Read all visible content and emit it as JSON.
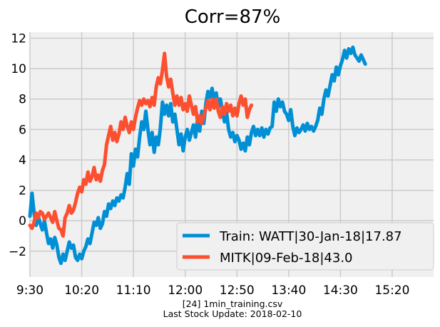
{
  "chart_data": {
    "type": "line",
    "title": "Corr=87%",
    "xlabel": "",
    "ylabel": "",
    "x_tick_labels": [
      "9:30",
      "10:20",
      "11:10",
      "12:00",
      "12:50",
      "13:40",
      "14:30",
      "15:20"
    ],
    "x_range_minutes": [
      0,
      390
    ],
    "ylim": [
      -3.7,
      12.4
    ],
    "y_ticks": [
      -2,
      0,
      2,
      4,
      6,
      8,
      10,
      12
    ],
    "y_tick_labels": [
      "−2",
      "0",
      "2",
      "4",
      "6",
      "8",
      "10",
      "12"
    ],
    "grid": true,
    "legend_position": "lower right",
    "series": [
      {
        "name": "Train: WATT|30-Jan-18|17.87",
        "color": "#008fd5",
        "points": [
          [
            0,
            0.3
          ],
          [
            2,
            1.8
          ],
          [
            4,
            0.5
          ],
          [
            6,
            -0.3
          ],
          [
            8,
            0.3
          ],
          [
            10,
            -0.2
          ],
          [
            12,
            -0.6
          ],
          [
            14,
            0.0
          ],
          [
            16,
            -0.8
          ],
          [
            18,
            -1.5
          ],
          [
            20,
            -1.2
          ],
          [
            22,
            -1.8
          ],
          [
            24,
            -1.1
          ],
          [
            26,
            -1.6
          ],
          [
            28,
            -2.4
          ],
          [
            30,
            -2.8
          ],
          [
            32,
            -2.2
          ],
          [
            34,
            -2.6
          ],
          [
            36,
            -2.0
          ],
          [
            38,
            -1.4
          ],
          [
            40,
            -1.8
          ],
          [
            42,
            -1.6
          ],
          [
            44,
            -2.4
          ],
          [
            46,
            -2.6
          ],
          [
            48,
            -2.2
          ],
          [
            50,
            -2.5
          ],
          [
            52,
            -2.0
          ],
          [
            54,
            -1.7
          ],
          [
            56,
            -1.2
          ],
          [
            58,
            -1.5
          ],
          [
            60,
            -0.8
          ],
          [
            62,
            -0.1
          ],
          [
            64,
            -0.3
          ],
          [
            66,
            0.2
          ],
          [
            68,
            -0.5
          ],
          [
            70,
            -0.2
          ],
          [
            72,
            0.6
          ],
          [
            74,
            0.3
          ],
          [
            76,
            1.1
          ],
          [
            78,
            0.8
          ],
          [
            80,
            1.3
          ],
          [
            82,
            1.0
          ],
          [
            84,
            1.5
          ],
          [
            86,
            1.3
          ],
          [
            88,
            1.7
          ],
          [
            90,
            1.5
          ],
          [
            92,
            2.2
          ],
          [
            94,
            3.1
          ],
          [
            96,
            2.4
          ],
          [
            98,
            4.4
          ],
          [
            100,
            3.6
          ],
          [
            102,
            4.7
          ],
          [
            104,
            4.2
          ],
          [
            106,
            5.5
          ],
          [
            108,
            6.5
          ],
          [
            110,
            6.0
          ],
          [
            112,
            7.2
          ],
          [
            114,
            6.0
          ],
          [
            116,
            5.0
          ],
          [
            118,
            5.8
          ],
          [
            120,
            4.5
          ],
          [
            122,
            5.5
          ],
          [
            124,
            5.0
          ],
          [
            126,
            6.1
          ],
          [
            128,
            7.8
          ],
          [
            130,
            7.0
          ],
          [
            132,
            7.6
          ],
          [
            134,
            6.9
          ],
          [
            136,
            7.7
          ],
          [
            138,
            6.5
          ],
          [
            140,
            7.0
          ],
          [
            142,
            6.0
          ],
          [
            144,
            5.0
          ],
          [
            146,
            5.7
          ],
          [
            148,
            4.6
          ],
          [
            150,
            5.5
          ],
          [
            152,
            6.0
          ],
          [
            154,
            5.3
          ],
          [
            156,
            5.8
          ],
          [
            158,
            6.3
          ],
          [
            160,
            5.5
          ],
          [
            162,
            6.7
          ],
          [
            164,
            5.9
          ],
          [
            166,
            7.2
          ],
          [
            168,
            6.4
          ],
          [
            170,
            7.7
          ],
          [
            172,
            8.5
          ],
          [
            174,
            8.1
          ],
          [
            176,
            8.7
          ],
          [
            178,
            7.8
          ],
          [
            180,
            8.4
          ],
          [
            182,
            7.5
          ],
          [
            184,
            8.0
          ],
          [
            186,
            7.2
          ],
          [
            188,
            6.5
          ],
          [
            190,
            7.1
          ],
          [
            192,
            6.0
          ],
          [
            194,
            5.5
          ],
          [
            196,
            5.8
          ],
          [
            198,
            5.2
          ],
          [
            200,
            5.6
          ],
          [
            202,
            5.3
          ],
          [
            204,
            4.7
          ],
          [
            206,
            5.1
          ],
          [
            208,
            4.6
          ],
          [
            210,
            5.5
          ],
          [
            212,
            5.0
          ],
          [
            214,
            5.8
          ],
          [
            216,
            6.2
          ],
          [
            218,
            5.6
          ],
          [
            220,
            6.0
          ],
          [
            222,
            5.6
          ],
          [
            224,
            6.1
          ],
          [
            226,
            5.5
          ],
          [
            228,
            6.0
          ],
          [
            230,
            5.7
          ],
          [
            232,
            6.1
          ],
          [
            234,
            6.2
          ],
          [
            236,
            7.8
          ],
          [
            238,
            7.2
          ],
          [
            240,
            8.0
          ],
          [
            242,
            7.5
          ],
          [
            244,
            7.8
          ],
          [
            246,
            7.2
          ],
          [
            248,
            7.0
          ],
          [
            250,
            6.6
          ],
          [
            252,
            7.3
          ],
          [
            254,
            6.2
          ],
          [
            256,
            5.6
          ],
          [
            258,
            6.1
          ],
          [
            260,
            5.8
          ],
          [
            262,
            6.0
          ],
          [
            264,
            6.3
          ],
          [
            266,
            5.9
          ],
          [
            268,
            6.4
          ],
          [
            270,
            6.0
          ],
          [
            272,
            6.2
          ],
          [
            274,
            5.9
          ],
          [
            276,
            6.2
          ],
          [
            278,
            6.6
          ],
          [
            280,
            7.4
          ],
          [
            282,
            7.0
          ],
          [
            284,
            8.0
          ],
          [
            286,
            8.6
          ],
          [
            288,
            8.2
          ],
          [
            290,
            8.9
          ],
          [
            292,
            9.6
          ],
          [
            294,
            9.2
          ],
          [
            296,
            10.1
          ],
          [
            298,
            9.6
          ],
          [
            300,
            10.2
          ],
          [
            302,
            10.6
          ],
          [
            304,
            11.2
          ],
          [
            306,
            10.7
          ],
          [
            308,
            11.3
          ],
          [
            310,
            11.0
          ],
          [
            312,
            11.4
          ],
          [
            314,
            10.9
          ],
          [
            316,
            10.7
          ],
          [
            318,
            10.5
          ],
          [
            320,
            10.9
          ],
          [
            322,
            10.6
          ],
          [
            324,
            10.3
          ]
        ]
      },
      {
        "name": "MITK|09-Feb-18|43.0",
        "color": "#fc4f30",
        "points": [
          [
            0,
            -0.3
          ],
          [
            2,
            -0.5
          ],
          [
            4,
            -0.1
          ],
          [
            6,
            0.5
          ],
          [
            8,
            0.2
          ],
          [
            10,
            0.6
          ],
          [
            12,
            0.5
          ],
          [
            14,
            0.1
          ],
          [
            16,
            0.3
          ],
          [
            18,
            0.5
          ],
          [
            20,
            0.2
          ],
          [
            22,
            -0.1
          ],
          [
            24,
            0.6
          ],
          [
            26,
            0.0
          ],
          [
            28,
            -0.5
          ],
          [
            30,
            -0.6
          ],
          [
            32,
            -1.0
          ],
          [
            34,
            0.2
          ],
          [
            36,
            0.5
          ],
          [
            38,
            1.0
          ],
          [
            40,
            0.5
          ],
          [
            42,
            0.7
          ],
          [
            44,
            1.2
          ],
          [
            46,
            1.8
          ],
          [
            48,
            2.2
          ],
          [
            50,
            1.9
          ],
          [
            52,
            2.7
          ],
          [
            54,
            2.4
          ],
          [
            56,
            3.2
          ],
          [
            58,
            2.6
          ],
          [
            60,
            2.9
          ],
          [
            62,
            3.5
          ],
          [
            64,
            2.7
          ],
          [
            66,
            3.0
          ],
          [
            68,
            2.6
          ],
          [
            70,
            3.3
          ],
          [
            72,
            3.7
          ],
          [
            74,
            5.0
          ],
          [
            76,
            5.6
          ],
          [
            78,
            6.2
          ],
          [
            80,
            5.3
          ],
          [
            82,
            5.8
          ],
          [
            84,
            5.2
          ],
          [
            86,
            5.7
          ],
          [
            88,
            6.5
          ],
          [
            90,
            6.0
          ],
          [
            92,
            6.8
          ],
          [
            94,
            6.2
          ],
          [
            96,
            5.8
          ],
          [
            98,
            6.5
          ],
          [
            100,
            6.0
          ],
          [
            102,
            6.8
          ],
          [
            104,
            7.4
          ],
          [
            106,
            7.9
          ],
          [
            108,
            7.6
          ],
          [
            110,
            8.0
          ],
          [
            112,
            7.7
          ],
          [
            114,
            7.9
          ],
          [
            116,
            7.5
          ],
          [
            118,
            8.1
          ],
          [
            120,
            7.6
          ],
          [
            122,
            8.8
          ],
          [
            124,
            9.4
          ],
          [
            126,
            9.0
          ],
          [
            128,
            9.9
          ],
          [
            130,
            11.0
          ],
          [
            132,
            9.5
          ],
          [
            134,
            8.8
          ],
          [
            136,
            9.3
          ],
          [
            138,
            8.4
          ],
          [
            140,
            7.6
          ],
          [
            142,
            8.2
          ],
          [
            144,
            7.6
          ],
          [
            146,
            8.1
          ],
          [
            148,
            7.3
          ],
          [
            150,
            7.7
          ],
          [
            152,
            7.2
          ],
          [
            154,
            8.2
          ],
          [
            156,
            7.6
          ],
          [
            158,
            7.0
          ],
          [
            160,
            7.5
          ],
          [
            162,
            6.5
          ],
          [
            164,
            6.9
          ],
          [
            166,
            6.4
          ],
          [
            168,
            6.9
          ],
          [
            170,
            7.4
          ],
          [
            172,
            7.9
          ],
          [
            174,
            7.3
          ],
          [
            176,
            8.0
          ],
          [
            178,
            7.4
          ],
          [
            180,
            8.0
          ],
          [
            182,
            7.2
          ],
          [
            184,
            6.8
          ],
          [
            186,
            7.5
          ],
          [
            188,
            7.0
          ],
          [
            190,
            7.7
          ],
          [
            192,
            7.2
          ],
          [
            194,
            7.6
          ],
          [
            196,
            6.9
          ],
          [
            198,
            7.4
          ],
          [
            200,
            6.9
          ],
          [
            202,
            7.7
          ],
          [
            204,
            8.2
          ],
          [
            206,
            7.6
          ],
          [
            208,
            8.0
          ],
          [
            210,
            6.8
          ],
          [
            212,
            7.3
          ],
          [
            214,
            7.6
          ]
        ]
      }
    ],
    "footer_lines": [
      "[24] 1min_training.csv",
      "Last Stock Update: 2018-02-10"
    ]
  }
}
